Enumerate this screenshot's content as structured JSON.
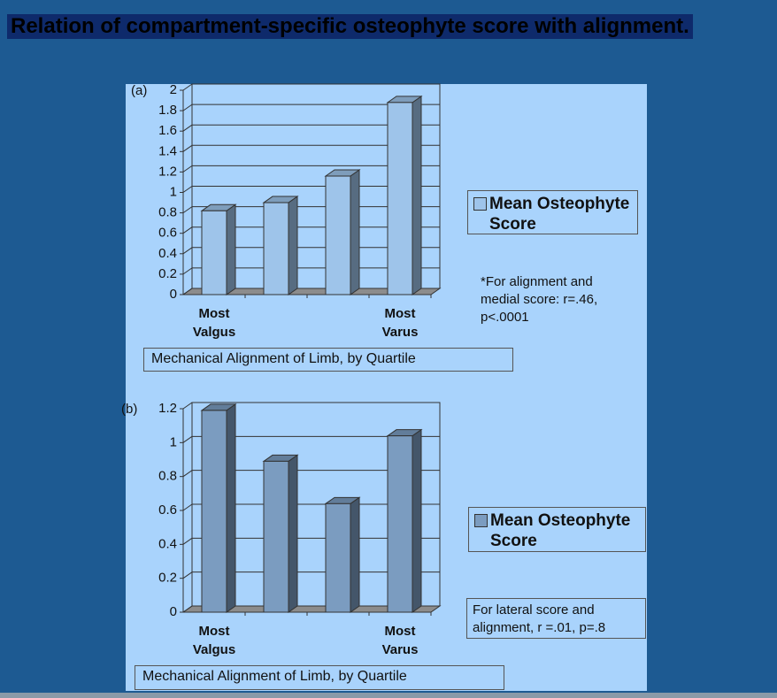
{
  "title": "Relation of compartment-specific osteophyte score with alignment.",
  "chart_data": [
    {
      "type": "bar",
      "panel_label": "(a)",
      "categories": [
        "Most Valgus",
        null,
        null,
        "Most Varus"
      ],
      "series": [
        {
          "name": "Mean Osteophyte Score",
          "color": "#9ec4ea",
          "values": [
            0.82,
            0.9,
            1.16,
            1.88
          ]
        }
      ],
      "x_label": "Mechanical Alignment of Limb, by Quartile",
      "annotation": "*For alignment and medial score: r=.46, p<.0001",
      "ylim": [
        0,
        2
      ],
      "yticks": [
        0,
        0.2,
        0.4,
        0.6,
        0.8,
        1,
        1.2,
        1.4,
        1.6,
        1.8,
        2
      ],
      "grid": true
    },
    {
      "type": "bar",
      "panel_label": "(b)",
      "categories": [
        "Most Valgus",
        null,
        null,
        "Most Varus"
      ],
      "series": [
        {
          "name": "Mean Osteophyte Score",
          "color": "#7b9cc0",
          "values": [
            1.19,
            0.89,
            0.64,
            1.04
          ]
        }
      ],
      "x_label": "Mechanical Alignment of Limb, by Quartile",
      "annotation": "For lateral score and alignment, r =.01, p=.8",
      "ylim": [
        0,
        1.2
      ],
      "yticks": [
        0,
        0.2,
        0.4,
        0.6,
        0.8,
        1,
        1.2
      ],
      "grid": true
    }
  ]
}
